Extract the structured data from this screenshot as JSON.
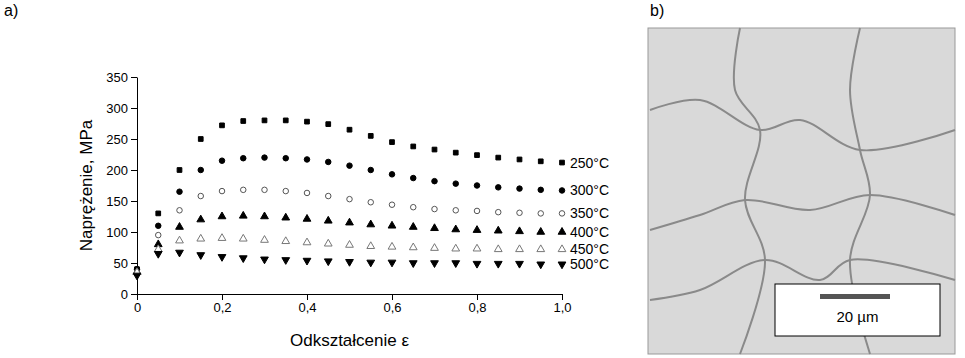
{
  "chart_data": {
    "type": "scatter",
    "x_label": "Odkształcenie ε",
    "y_label": "Naprężenie, MPa",
    "x": [
      0,
      0.05,
      0.1,
      0.15,
      0.2,
      0.25,
      0.3,
      0.35,
      0.4,
      0.45,
      0.5,
      0.55,
      0.6,
      0.65,
      0.7,
      0.75,
      0.8,
      0.85,
      0.9,
      0.95,
      1
    ],
    "xlim": [
      0,
      1
    ],
    "xticks": [
      0,
      {
        "value": 0.2,
        "label": "0,2"
      },
      {
        "value": 0.4,
        "label": "0,4"
      },
      {
        "value": 0.6,
        "label": "0,6"
      },
      {
        "value": 0.8,
        "label": "0,8"
      },
      {
        "value": 1,
        "label": "1,0"
      }
    ],
    "ylim": [
      0,
      350
    ],
    "yticks": [
      0,
      50,
      100,
      150,
      200,
      250,
      300,
      350
    ],
    "grid": false,
    "line_style": "none",
    "series": [
      {
        "name": "250°C",
        "color": "#000000",
        "marker": "square",
        "values": [
          40,
          130,
          200,
          250,
          272,
          279,
          280,
          280,
          278,
          274,
          265,
          255,
          245,
          238,
          233,
          228,
          224,
          220,
          217,
          214,
          212
        ]
      },
      {
        "name": "300°C",
        "color": "#000000",
        "marker": "circle",
        "values": [
          40,
          110,
          165,
          200,
          215,
          219,
          220,
          219,
          217,
          213,
          207,
          200,
          193,
          187,
          182,
          178,
          175,
          172,
          170,
          168,
          167
        ]
      },
      {
        "name": "350°C",
        "color": "#555555",
        "marker": "circle-open",
        "values": [
          35,
          95,
          135,
          158,
          166,
          168,
          168,
          166,
          163,
          158,
          153,
          148,
          144,
          140,
          137,
          135,
          134,
          132,
          131,
          130,
          130
        ]
      },
      {
        "name": "400°C",
        "color": "#000000",
        "marker": "triangle",
        "values": [
          35,
          80,
          108,
          120,
          125,
          126,
          125,
          123,
          121,
          118,
          115,
          112,
          110,
          108,
          106,
          104,
          103,
          102,
          101,
          100,
          100
        ]
      },
      {
        "name": "450°C",
        "color": "#777777",
        "marker": "triangle-open",
        "values": [
          35,
          72,
          86,
          89,
          90,
          89,
          87,
          85,
          83,
          81,
          79,
          77,
          76,
          75,
          74,
          73,
          73,
          72,
          72,
          72,
          72
        ]
      },
      {
        "name": "500°C",
        "color": "#000000",
        "marker": "triangle-down",
        "values": [
          30,
          65,
          67,
          63,
          60,
          58,
          56,
          55,
          54,
          53,
          52,
          51,
          51,
          50,
          50,
          50,
          49,
          49,
          49,
          48,
          48
        ]
      }
    ]
  },
  "panel_labels": [
    "a)",
    "b)"
  ],
  "micrograph": {
    "scale_bar_label": "20 µm"
  }
}
